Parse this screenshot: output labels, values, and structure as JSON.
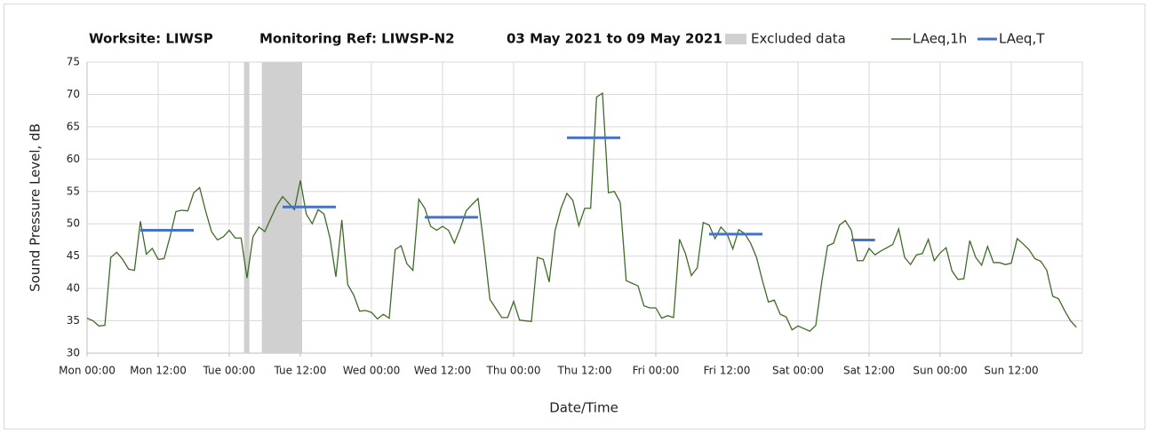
{
  "chart_data": {
    "type": "line",
    "title": [
      "Worksite: LIWSP",
      "Monitoring Ref: LIWSP-N2",
      "03 May 2021 to 09 May 2021"
    ],
    "xlabel": "Date/Time",
    "ylabel": "Sound Pressure Level, dB",
    "xlim": [
      0,
      168
    ],
    "xticks": [
      {
        "value": 0,
        "label": "Mon 00:00"
      },
      {
        "value": 12,
        "label": "Mon 12:00"
      },
      {
        "value": 24,
        "label": "Tue 00:00"
      },
      {
        "value": 36,
        "label": "Tue 12:00"
      },
      {
        "value": 48,
        "label": "Wed 00:00"
      },
      {
        "value": 60,
        "label": "Wed 12:00"
      },
      {
        "value": 72,
        "label": "Thu 00:00"
      },
      {
        "value": 84,
        "label": "Thu 12:00"
      },
      {
        "value": 96,
        "label": "Fri 00:00"
      },
      {
        "value": 108,
        "label": "Fri 12:00"
      },
      {
        "value": 120,
        "label": "Sat 00:00"
      },
      {
        "value": 132,
        "label": "Sat 12:00"
      },
      {
        "value": 144,
        "label": "Sun 00:00"
      },
      {
        "value": 156,
        "label": "Sun 12:00"
      }
    ],
    "ylim": [
      30,
      75
    ],
    "yticks": [
      30,
      35,
      40,
      45,
      50,
      55,
      60,
      65,
      70,
      75
    ],
    "grid": true,
    "excluded": {
      "name": "Excluded data",
      "color": "#d0d0d0",
      "ranges": [
        [
          26.5,
          27.4
        ],
        [
          29.5,
          36.3
        ]
      ]
    },
    "series": [
      {
        "name": "LAeq,1h",
        "color": "#3f6b2a",
        "x": [
          0,
          1,
          2,
          3,
          4,
          5,
          6,
          7,
          8,
          9,
          10,
          11,
          12,
          13,
          14,
          15,
          16,
          17,
          18,
          19,
          20,
          21,
          22,
          23,
          24,
          25,
          26,
          27,
          28,
          29,
          30,
          31,
          32,
          33,
          34,
          35,
          36,
          37,
          38,
          39,
          40,
          41,
          42,
          43,
          44,
          45,
          46,
          47,
          48,
          49,
          50,
          51,
          52,
          53,
          54,
          55,
          56,
          57,
          58,
          59,
          60,
          61,
          62,
          63,
          64,
          65,
          66,
          67,
          68,
          69,
          70,
          71,
          72,
          73,
          74,
          75,
          76,
          77,
          78,
          79,
          80,
          81,
          82,
          83,
          84,
          85,
          86,
          87,
          88,
          89,
          90,
          91,
          92,
          93,
          94,
          95,
          96,
          97,
          98,
          99,
          100,
          101,
          102,
          103,
          104,
          105,
          106,
          107,
          108,
          109,
          110,
          111,
          112,
          113,
          114,
          115,
          116,
          117,
          118,
          119,
          120,
          121,
          122,
          123,
          124,
          125,
          126,
          127,
          128,
          129,
          130,
          131,
          132,
          133,
          134,
          135,
          136,
          137,
          138,
          139,
          140,
          141,
          142,
          143,
          144,
          145,
          146,
          147,
          148,
          149,
          150,
          151,
          152,
          153,
          154,
          155,
          156,
          157,
          158,
          159,
          160,
          161,
          162,
          163,
          164,
          165,
          166,
          167
        ],
        "values": [
          35.4,
          35.0,
          34.2,
          34.3,
          44.8,
          45.6,
          44.5,
          43.0,
          42.8,
          50.4,
          45.3,
          46.2,
          44.5,
          44.6,
          48.0,
          51.9,
          52.1,
          52.0,
          54.8,
          55.6,
          52.0,
          48.8,
          47.5,
          48.0,
          49.0,
          47.8,
          47.8,
          41.6,
          48.0,
          49.5,
          48.8,
          50.8,
          52.8,
          54.2,
          53.2,
          52.2,
          56.7,
          51.5,
          50.0,
          52.2,
          51.5,
          47.8,
          41.8,
          50.6,
          40.6,
          39.0,
          36.5,
          36.6,
          36.3,
          35.3,
          36.0,
          35.4,
          46.0,
          46.6,
          43.8,
          42.8,
          53.8,
          52.4,
          49.6,
          49.0,
          49.6,
          49.0,
          47.0,
          49.3,
          52.0,
          53.0,
          53.9,
          46.5,
          38.3,
          36.9,
          35.5,
          35.5,
          38.0,
          35.1,
          35.0,
          34.9,
          44.8,
          44.5,
          41.0,
          49.0,
          52.4,
          54.7,
          53.6,
          49.7,
          52.4,
          52.4,
          69.6,
          70.2,
          54.8,
          55.0,
          53.3,
          41.2,
          40.8,
          40.4,
          37.3,
          37.0,
          37.0,
          35.4,
          35.8,
          35.5,
          47.6,
          45.4,
          42.0,
          43.2,
          50.2,
          49.8,
          47.7,
          49.5,
          48.5,
          46.1,
          49.1,
          48.5,
          47.0,
          44.8,
          41.2,
          37.9,
          38.2,
          36.0,
          35.6,
          33.6,
          34.2,
          33.8,
          33.4,
          34.3,
          41.0,
          46.6,
          47.0,
          49.8,
          50.5,
          49.0,
          44.3,
          44.3,
          46.2,
          45.2,
          45.8,
          46.3,
          46.8,
          49.2,
          44.8,
          43.7,
          45.2,
          45.4,
          47.6,
          44.3,
          45.5,
          46.3,
          42.7,
          41.4,
          41.5,
          47.4,
          44.8,
          43.6,
          46.5,
          44.0,
          44.0,
          43.7,
          43.9,
          47.7,
          46.9,
          46.0,
          44.6,
          44.2,
          42.8,
          38.8,
          38.4,
          36.6,
          35.0,
          34.0
        ]
      },
      {
        "name": "LAeq,T",
        "color": "#4472c4",
        "segments": [
          {
            "x": [
              9,
              18
            ],
            "value": 49.0
          },
          {
            "x": [
              33,
              42
            ],
            "value": 52.6
          },
          {
            "x": [
              57,
              66
            ],
            "value": 51.0
          },
          {
            "x": [
              81,
              90
            ],
            "value": 63.3
          },
          {
            "x": [
              105,
              114
            ],
            "value": 48.4
          },
          {
            "x": [
              129,
              133
            ],
            "value": 47.5
          }
        ]
      }
    ]
  }
}
